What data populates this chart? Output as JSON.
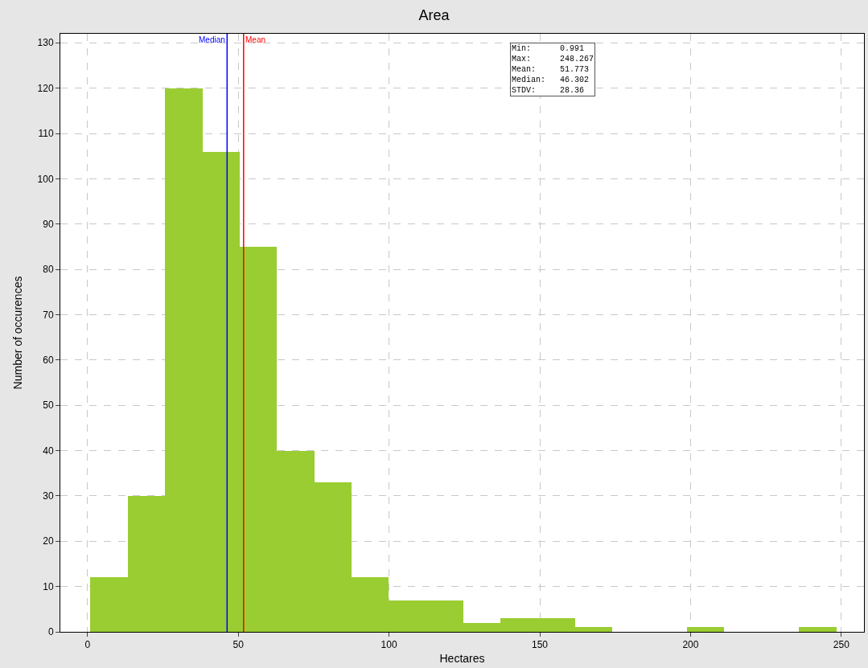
{
  "chart_data": {
    "type": "histogram",
    "title": "Area",
    "xlabel": "Hectares",
    "ylabel": "Number of occurences",
    "bins": [
      1.0,
      13.4,
      25.7,
      38.1,
      50.4,
      62.8,
      75.2,
      87.5,
      99.9,
      112.3,
      124.6,
      137.0,
      149.4,
      161.7,
      174.1,
      186.4,
      198.8,
      211.2,
      223.5,
      235.9,
      248.3
    ],
    "values": [
      12,
      30,
      120,
      106,
      85,
      40,
      33,
      12,
      7,
      7,
      2,
      3,
      3,
      1,
      0,
      0,
      1,
      0,
      0,
      1
    ],
    "color": "#9acd32",
    "xlim": [
      -9,
      257.5
    ],
    "xticks": [
      0,
      50,
      100,
      150,
      200,
      250
    ],
    "ylim": [
      0,
      132
    ],
    "yticks": [
      0,
      10,
      20,
      30,
      40,
      50,
      60,
      70,
      80,
      90,
      100,
      110,
      120,
      130
    ],
    "grid": true,
    "ref_lines": [
      {
        "axis": "x",
        "value": 46.302,
        "label": "Median",
        "color": "#0000ff"
      },
      {
        "axis": "x",
        "value": 51.773,
        "label": "Mean",
        "color": "#ff0000"
      }
    ],
    "annotations": [
      "Min:      0.991\nMax:      248.267\nMean:     51.773\nMedian:   46.302\nSTDV:     28.36"
    ]
  }
}
